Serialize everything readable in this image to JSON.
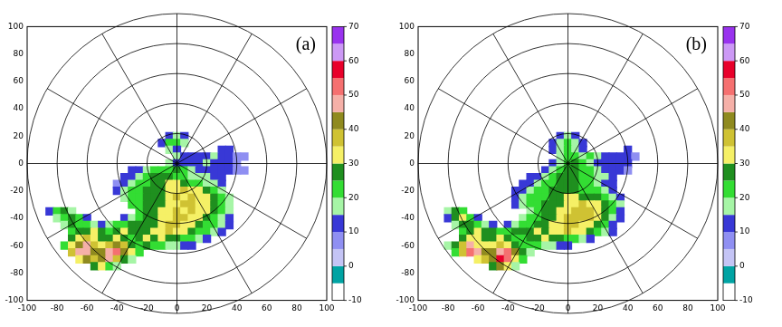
{
  "chart_data": [
    {
      "type": "heatmap",
      "annotation": "(a)",
      "xlim": [
        -100,
        100
      ],
      "ylim": [
        -100,
        100
      ],
      "xticks": [
        -100,
        -80,
        -60,
        -40,
        -20,
        0,
        20,
        40,
        60,
        80,
        100
      ],
      "yticks": [
        -100,
        -80,
        -60,
        -40,
        -20,
        0,
        20,
        40,
        60,
        80,
        100
      ],
      "grid": true,
      "cell_size": 5,
      "rows": [
        {
          "y": 20,
          "x0": -5,
          "values": [
            10,
            15,
            10
          ]
        },
        {
          "y": 15,
          "x0": -10,
          "values": [
            10,
            20,
            20,
            15
          ]
        },
        {
          "y": 10,
          "x0": -5,
          "values": [
            15,
            10,
            null,
            null,
            null,
            null,
            null,
            10,
            10
          ]
        },
        {
          "y": 5,
          "x0": 0,
          "values": [
            15,
            10,
            10,
            10,
            10,
            15,
            10,
            10,
            5,
            5
          ]
        },
        {
          "y": 0,
          "x0": -5,
          "values": [
            15,
            10,
            10,
            10,
            10,
            15,
            10,
            10,
            10,
            5
          ]
        },
        {
          "y": -5,
          "x0": -30,
          "values": [
            10,
            10,
            15,
            20,
            20,
            20,
            25,
            20,
            15,
            10,
            10,
            10,
            10,
            10,
            5,
            5
          ]
        },
        {
          "y": -10,
          "x0": -35,
          "values": [
            10,
            10,
            15,
            20,
            25,
            25,
            25,
            20,
            20,
            15,
            15,
            15,
            10,
            10
          ]
        },
        {
          "y": -15,
          "x0": -40,
          "values": [
            5,
            10,
            15,
            20,
            20,
            25,
            25,
            30,
            30,
            25,
            20,
            20,
            15,
            15,
            10
          ]
        },
        {
          "y": -20,
          "x0": -40,
          "values": [
            10,
            15,
            20,
            20,
            25,
            25,
            25,
            30,
            30,
            35,
            30,
            30,
            25,
            20,
            15
          ]
        },
        {
          "y": -25,
          "x0": -35,
          "values": [
            15,
            20,
            20,
            25,
            25,
            25,
            30,
            35,
            30,
            35,
            30,
            30,
            25,
            20,
            15
          ]
        },
        {
          "y": -30,
          "x0": -30,
          "values": [
            20,
            20,
            25,
            25,
            25,
            30,
            30,
            35,
            35,
            30,
            30,
            25,
            20,
            15
          ]
        },
        {
          "y": -35,
          "x0": -85,
          "values": [
            10,
            20,
            25,
            15,
            null,
            null,
            null,
            null,
            null,
            null,
            null,
            null,
            20,
            25,
            25,
            30,
            30,
            35,
            30,
            35,
            30,
            30,
            25,
            20,
            15
          ]
        },
        {
          "y": -40,
          "x0": -80,
          "values": [
            15,
            20,
            25,
            20,
            10,
            null,
            null,
            null,
            null,
            10,
            15,
            20,
            25,
            25,
            30,
            30,
            35,
            35,
            30,
            30,
            25,
            20,
            15,
            10
          ]
        },
        {
          "y": -45,
          "x0": -75,
          "values": [
            15,
            25,
            20,
            20,
            15,
            10,
            15,
            20,
            20,
            25,
            25,
            25,
            25,
            30,
            35,
            35,
            30,
            30,
            25,
            20,
            20,
            15,
            10
          ]
        },
        {
          "y": -50,
          "x0": -70,
          "values": [
            20,
            25,
            25,
            30,
            25,
            20,
            25,
            30,
            25,
            25,
            25,
            30,
            30,
            35,
            30,
            30,
            25,
            20,
            20,
            15,
            10
          ]
        },
        {
          "y": -55,
          "x0": -70,
          "values": [
            25,
            30,
            35,
            30,
            25,
            25,
            30,
            25,
            20,
            25,
            30,
            25,
            30,
            25,
            25,
            20,
            20,
            15,
            10
          ]
        },
        {
          "y": -60,
          "x0": -75,
          "values": [
            20,
            30,
            40,
            45,
            35,
            30,
            35,
            40,
            35,
            25,
            20,
            25,
            20,
            20,
            15,
            15,
            10,
            10
          ]
        },
        {
          "y": -65,
          "x0": -70,
          "values": [
            35,
            45,
            45,
            40,
            40,
            45,
            50,
            40,
            30,
            20
          ]
        },
        {
          "y": -70,
          "x0": -65,
          "values": [
            30,
            40,
            35,
            40,
            45,
            35,
            25,
            15
          ]
        },
        {
          "y": -75,
          "x0": -55,
          "values": [
            25,
            30,
            20,
            15
          ]
        }
      ],
      "colorbar": {
        "range": [
          -10,
          70
        ],
        "ticks": [
          -10,
          0,
          10,
          20,
          30,
          40,
          50,
          60,
          70
        ],
        "bounds": [
          -10,
          -5,
          0,
          5,
          10,
          15,
          20,
          25,
          30,
          35,
          40,
          45,
          50,
          55,
          60,
          65,
          70
        ],
        "colors": [
          "#ffffff",
          "#00a3a3",
          "#c4c4f5",
          "#8f8ff2",
          "#3838d6",
          "#a6f5a6",
          "#33dd33",
          "#1f8f1f",
          "#f5f066",
          "#cfc233",
          "#8f8a1f",
          "#f5b0a8",
          "#f57070",
          "#e8002a",
          "#cc99f5",
          "#9933ee"
        ]
      }
    },
    {
      "type": "heatmap",
      "annotation": "(b)",
      "xlim": [
        -100,
        100
      ],
      "ylim": [
        -100,
        100
      ],
      "xticks": [
        -100,
        -80,
        -60,
        -40,
        -20,
        0,
        20,
        40,
        60,
        80,
        100
      ],
      "yticks": [
        -100,
        -80,
        -60,
        -40,
        -20,
        0,
        20,
        40,
        60,
        80,
        100
      ],
      "grid": true,
      "cell_size": 5,
      "rows": [
        {
          "y": 20,
          "x0": -5,
          "values": [
            10,
            15,
            10
          ]
        },
        {
          "y": 15,
          "x0": -10,
          "values": [
            10,
            15,
            20,
            15,
            10
          ]
        },
        {
          "y": 10,
          "x0": -10,
          "values": [
            10,
            15,
            20,
            15,
            10,
            null,
            null,
            null,
            null,
            null,
            10
          ]
        },
        {
          "y": 5,
          "x0": -5,
          "values": [
            15,
            20,
            20,
            15,
            20,
            15,
            10,
            10,
            10,
            10,
            5
          ]
        },
        {
          "y": 0,
          "x0": -10,
          "values": [
            10,
            15,
            20,
            25,
            20,
            15,
            10,
            10,
            10,
            10,
            10
          ]
        },
        {
          "y": -5,
          "x0": -15,
          "values": [
            10,
            15,
            20,
            25,
            25,
            20,
            20,
            15,
            10,
            10,
            10,
            5
          ]
        },
        {
          "y": -10,
          "x0": -25,
          "values": [
            10,
            10,
            15,
            20,
            25,
            25,
            25,
            20,
            20,
            15,
            15,
            10
          ]
        },
        {
          "y": -15,
          "x0": -30,
          "values": [
            10,
            10,
            15,
            20,
            20,
            25,
            25,
            25,
            20,
            20,
            15,
            10,
            10
          ]
        },
        {
          "y": -20,
          "x0": -35,
          "values": [
            10,
            10,
            15,
            20,
            20,
            25,
            25,
            25,
            25,
            20,
            20,
            20,
            15,
            10
          ]
        },
        {
          "y": -25,
          "x0": -35,
          "values": [
            10,
            15,
            20,
            20,
            20,
            25,
            25,
            30,
            30,
            25,
            25,
            25,
            20,
            15,
            10
          ]
        },
        {
          "y": -30,
          "x0": -35,
          "values": [
            10,
            15,
            20,
            20,
            25,
            25,
            25,
            30,
            30,
            35,
            30,
            30,
            25,
            20,
            15
          ]
        },
        {
          "y": -35,
          "x0": -80,
          "values": [
            15,
            25,
            20,
            null,
            null,
            null,
            null,
            null,
            null,
            null,
            null,
            15,
            20,
            25,
            25,
            30,
            30,
            35,
            35,
            35,
            30,
            25,
            20,
            10
          ]
        },
        {
          "y": -40,
          "x0": -80,
          "values": [
            10,
            25,
            30,
            20,
            10,
            null,
            null,
            null,
            null,
            null,
            15,
            20,
            20,
            25,
            25,
            30,
            35,
            35,
            35,
            35,
            30,
            25,
            15,
            10
          ]
        },
        {
          "y": -45,
          "x0": -75,
          "values": [
            15,
            25,
            25,
            20,
            15,
            10,
            null,
            10,
            15,
            20,
            20,
            25,
            25,
            30,
            30,
            35,
            35,
            30,
            30,
            25,
            20,
            10
          ]
        },
        {
          "y": -50,
          "x0": -70,
          "values": [
            20,
            25,
            30,
            25,
            25,
            20,
            20,
            25,
            25,
            25,
            30,
            25,
            30,
            30,
            35,
            30,
            30,
            25,
            20,
            15,
            10
          ]
        },
        {
          "y": -55,
          "x0": -70,
          "values": [
            25,
            30,
            30,
            25,
            25,
            30,
            25,
            20,
            20,
            25,
            25,
            30,
            25,
            25,
            20,
            20,
            15,
            10
          ]
        },
        {
          "y": -60,
          "x0": -80,
          "values": [
            15,
            25,
            35,
            45,
            30,
            30,
            30,
            35,
            30,
            25,
            20,
            20,
            20,
            15,
            15,
            10,
            10
          ]
        },
        {
          "y": -65,
          "x0": -75,
          "values": [
            20,
            35,
            50,
            45,
            40,
            40,
            45,
            50,
            40,
            25,
            15
          ]
        },
        {
          "y": -70,
          "x0": -60,
          "values": [
            30,
            35,
            40,
            55,
            50,
            30,
            20
          ]
        },
        {
          "y": -75,
          "x0": -50,
          "values": [
            25,
            40,
            30,
            15
          ]
        }
      ],
      "colorbar": {
        "range": [
          -10,
          70
        ],
        "ticks": [
          -10,
          0,
          10,
          20,
          30,
          40,
          50,
          60,
          70
        ],
        "bounds": [
          -10,
          -5,
          0,
          5,
          10,
          15,
          20,
          25,
          30,
          35,
          40,
          45,
          50,
          55,
          60,
          65,
          70
        ],
        "colors": [
          "#ffffff",
          "#00a3a3",
          "#c4c4f5",
          "#8f8ff2",
          "#3838d6",
          "#a6f5a6",
          "#33dd33",
          "#1f8f1f",
          "#f5f066",
          "#cfc233",
          "#8f8a1f",
          "#f5b0a8",
          "#f57070",
          "#e8002a",
          "#cc99f5",
          "#9933ee"
        ]
      }
    }
  ]
}
